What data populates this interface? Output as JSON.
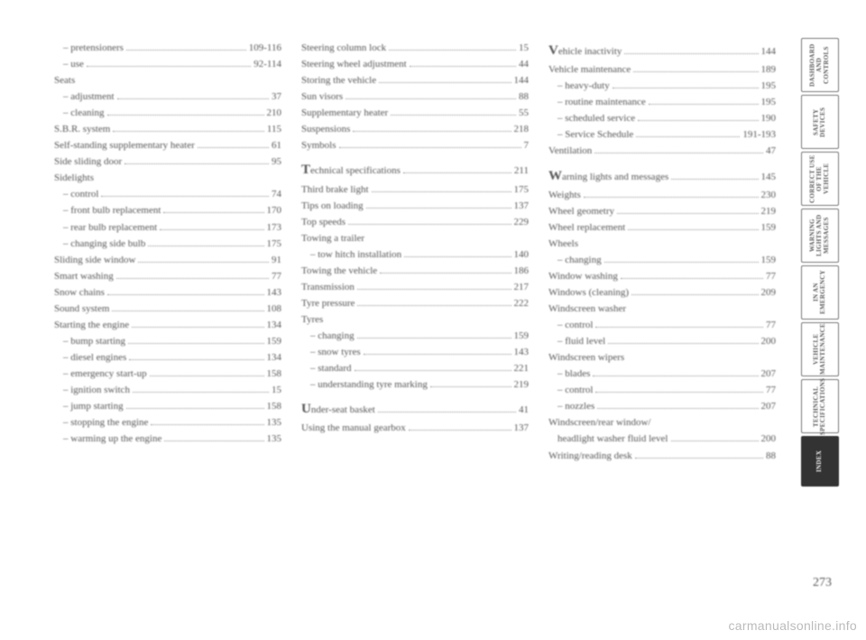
{
  "page_number": "273",
  "watermark": "carmanualsonline.info",
  "tabs": [
    {
      "label": "DASHBOARD AND CONTROLS",
      "active": false
    },
    {
      "label": "SAFETY DEVICES",
      "active": false
    },
    {
      "label": "CORRECT USE OF THE VEHICLE",
      "active": false
    },
    {
      "label": "WARNING LIGHTS AND MESSAGES",
      "active": false
    },
    {
      "label": "IN AN EMERGENCY",
      "active": false
    },
    {
      "label": "VEHICLE MAINTENANCE",
      "active": false
    },
    {
      "label": "TECHNICAL SPECIFICATIONS",
      "active": false
    },
    {
      "label": "INDEX",
      "active": true
    }
  ],
  "columns": [
    [
      {
        "label": "– pretensioners",
        "page": "109-116",
        "indent": true
      },
      {
        "label": "– use",
        "page": "92-114",
        "indent": true
      },
      {
        "label": "Seats",
        "page": "",
        "indent": false,
        "nodots": true
      },
      {
        "label": "– adjustment",
        "page": "37",
        "indent": true
      },
      {
        "label": "– cleaning",
        "page": "210",
        "indent": true
      },
      {
        "label": "S.B.R. system",
        "page": "115",
        "indent": false
      },
      {
        "label": "Self-standing supplementary heater",
        "page": "61",
        "indent": false
      },
      {
        "label": "Side sliding door",
        "page": "95",
        "indent": false
      },
      {
        "label": "Sidelights",
        "page": "",
        "indent": false,
        "nodots": true
      },
      {
        "label": "– control",
        "page": "74",
        "indent": true
      },
      {
        "label": "– front bulb replacement",
        "page": "170",
        "indent": true
      },
      {
        "label": "– rear bulb replacement",
        "page": "173",
        "indent": true
      },
      {
        "label": "– changing side bulb",
        "page": "175",
        "indent": true
      },
      {
        "label": "Sliding side window",
        "page": "91",
        "indent": false
      },
      {
        "label": "Smart washing",
        "page": "77",
        "indent": false
      },
      {
        "label": "Snow chains",
        "page": "143",
        "indent": false
      },
      {
        "label": "Sound system",
        "page": "108",
        "indent": false
      },
      {
        "label": "Starting the engine",
        "page": "134",
        "indent": false
      },
      {
        "label": "– bump starting",
        "page": "159",
        "indent": true
      },
      {
        "label": "– diesel engines",
        "page": "134",
        "indent": true
      },
      {
        "label": "– emergency start-up",
        "page": "158",
        "indent": true
      },
      {
        "label": "– ignition switch",
        "page": "15",
        "indent": true
      },
      {
        "label": "– jump starting",
        "page": "158",
        "indent": true
      },
      {
        "label": "– stopping the engine",
        "page": "135",
        "indent": true
      },
      {
        "label": "– warming up the engine",
        "page": "135",
        "indent": true
      }
    ],
    [
      {
        "label": "Steering column lock",
        "page": "15",
        "indent": false
      },
      {
        "label": "Steering wheel adjustment",
        "page": "44",
        "indent": false
      },
      {
        "label": "Storing the vehicle",
        "page": "144",
        "indent": false
      },
      {
        "label": "Sun visors",
        "page": "88",
        "indent": false
      },
      {
        "label": "Supplementary heater",
        "page": "55",
        "indent": false
      },
      {
        "label": "Suspensions",
        "page": "218",
        "indent": false
      },
      {
        "label": "Symbols",
        "page": "7",
        "indent": false
      },
      {
        "gap": true
      },
      {
        "label": "Technical specifications",
        "page": "211",
        "indent": false,
        "cap": "T"
      },
      {
        "label": "Third brake light",
        "page": "175",
        "indent": false
      },
      {
        "label": "Tips on loading",
        "page": "137",
        "indent": false
      },
      {
        "label": "Top speeds",
        "page": "229",
        "indent": false
      },
      {
        "label": "Towing a trailer",
        "page": "",
        "indent": false,
        "nodots": true
      },
      {
        "label": "– tow hitch installation",
        "page": "140",
        "indent": true
      },
      {
        "label": "Towing the vehicle",
        "page": "186",
        "indent": false
      },
      {
        "label": "Transmission",
        "page": "217",
        "indent": false
      },
      {
        "label": "Tyre pressure",
        "page": "222",
        "indent": false
      },
      {
        "label": "Tyres",
        "page": "",
        "indent": false,
        "nodots": true
      },
      {
        "label": "– changing",
        "page": "159",
        "indent": true
      },
      {
        "label": "– snow tyres",
        "page": "143",
        "indent": true
      },
      {
        "label": "– standard",
        "page": "221",
        "indent": true
      },
      {
        "label": "– understanding tyre marking",
        "page": "219",
        "indent": true
      },
      {
        "gap": true
      },
      {
        "label": "Under-seat basket",
        "page": "41",
        "indent": false,
        "cap": "U"
      },
      {
        "label": "Using the manual gearbox",
        "page": "137",
        "indent": false
      }
    ],
    [
      {
        "label": "Vehicle inactivity",
        "page": "144",
        "indent": false,
        "cap": "V"
      },
      {
        "label": "Vehicle maintenance",
        "page": "189",
        "indent": false
      },
      {
        "label": "– heavy-duty",
        "page": "195",
        "indent": true
      },
      {
        "label": "– routine maintenance",
        "page": "195",
        "indent": true
      },
      {
        "label": "– scheduled service",
        "page": "190",
        "indent": true
      },
      {
        "label": "– Service Schedule",
        "page": "191-193",
        "indent": true
      },
      {
        "label": "Ventilation",
        "page": "47",
        "indent": false
      },
      {
        "gap": true
      },
      {
        "label": "Warning lights and messages",
        "page": "145",
        "indent": false,
        "cap": "W"
      },
      {
        "label": "Weights",
        "page": "230",
        "indent": false
      },
      {
        "label": "Wheel geometry",
        "page": "219",
        "indent": false
      },
      {
        "label": "Wheel replacement",
        "page": "159",
        "indent": false
      },
      {
        "label": "Wheels",
        "page": "",
        "indent": false,
        "nodots": true
      },
      {
        "label": "– changing",
        "page": "159",
        "indent": true
      },
      {
        "label": "Window washing",
        "page": "77",
        "indent": false
      },
      {
        "label": "Windows (cleaning)",
        "page": "209",
        "indent": false
      },
      {
        "label": "Windscreen washer",
        "page": "",
        "indent": false,
        "nodots": true
      },
      {
        "label": "– control",
        "page": "77",
        "indent": true
      },
      {
        "label": "– fluid level",
        "page": "200",
        "indent": true
      },
      {
        "label": "Windscreen wipers",
        "page": "",
        "indent": false,
        "nodots": true
      },
      {
        "label": "– blades",
        "page": "207",
        "indent": true
      },
      {
        "label": "– control",
        "page": "77",
        "indent": true
      },
      {
        "label": "– nozzles",
        "page": "207",
        "indent": true
      },
      {
        "label": "Windscreen/rear window/",
        "page": "",
        "indent": false,
        "nodots": true
      },
      {
        "label": "headlight washer fluid level",
        "page": "200",
        "indent": true
      },
      {
        "label": "Writing/reading desk",
        "page": "88",
        "indent": false
      }
    ]
  ]
}
